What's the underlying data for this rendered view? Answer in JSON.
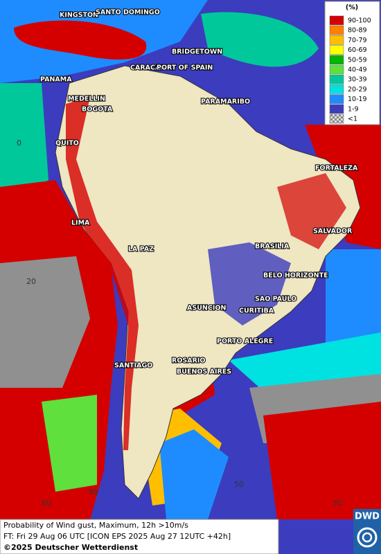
{
  "map": {
    "cities": [
      "KINGSTON",
      "SANTO DOMINGO",
      "BRIDGETOWN",
      "PANAMA",
      "CARACAS",
      "PORT OF SPAIN",
      "MEDELLIN",
      "BOGOTA",
      "PARAMARIBO",
      "QUITO",
      "FORTALEZA",
      "LIMA",
      "SALVADOR",
      "BRASILIA",
      "LA PAZ",
      "BELO HORIZONTE",
      "SAO PAULO",
      "ASUNCION",
      "CURITIBA",
      "PORTO ALEGRE",
      "ROSARIO",
      "SANTIAGO",
      "BUENOS AIRES"
    ],
    "grid_labels": [
      "0",
      "20",
      "60",
      "80",
      "50",
      "30"
    ]
  },
  "legend": {
    "title": "(%)",
    "items": [
      {
        "label": "90-100",
        "color": "#d40000"
      },
      {
        "label": "80-89",
        "color": "#ff7f00"
      },
      {
        "label": "70-79",
        "color": "#ffbf00"
      },
      {
        "label": "60-69",
        "color": "#ffff00"
      },
      {
        "label": "50-59",
        "color": "#00b400"
      },
      {
        "label": "40-49",
        "color": "#5fe03c"
      },
      {
        "label": "30-39",
        "color": "#00c89b"
      },
      {
        "label": "20-29",
        "color": "#00e1e1"
      },
      {
        "label": "10-19",
        "color": "#1e8cff"
      },
      {
        "label": "1-9",
        "color": "#3c3cbe"
      },
      {
        "label": "<1",
        "color": "#a0a0a0"
      }
    ]
  },
  "caption": {
    "line1": "Probability of Wind gust, Maximum, 12h >10m/s",
    "line2": "FT: Fri 29 Aug 06 UTC [ICON EPS 2025 Aug 27 12UTC +42h]",
    "copyright": "©2025 Deutscher Wetterdienst"
  },
  "logo": "DWD"
}
